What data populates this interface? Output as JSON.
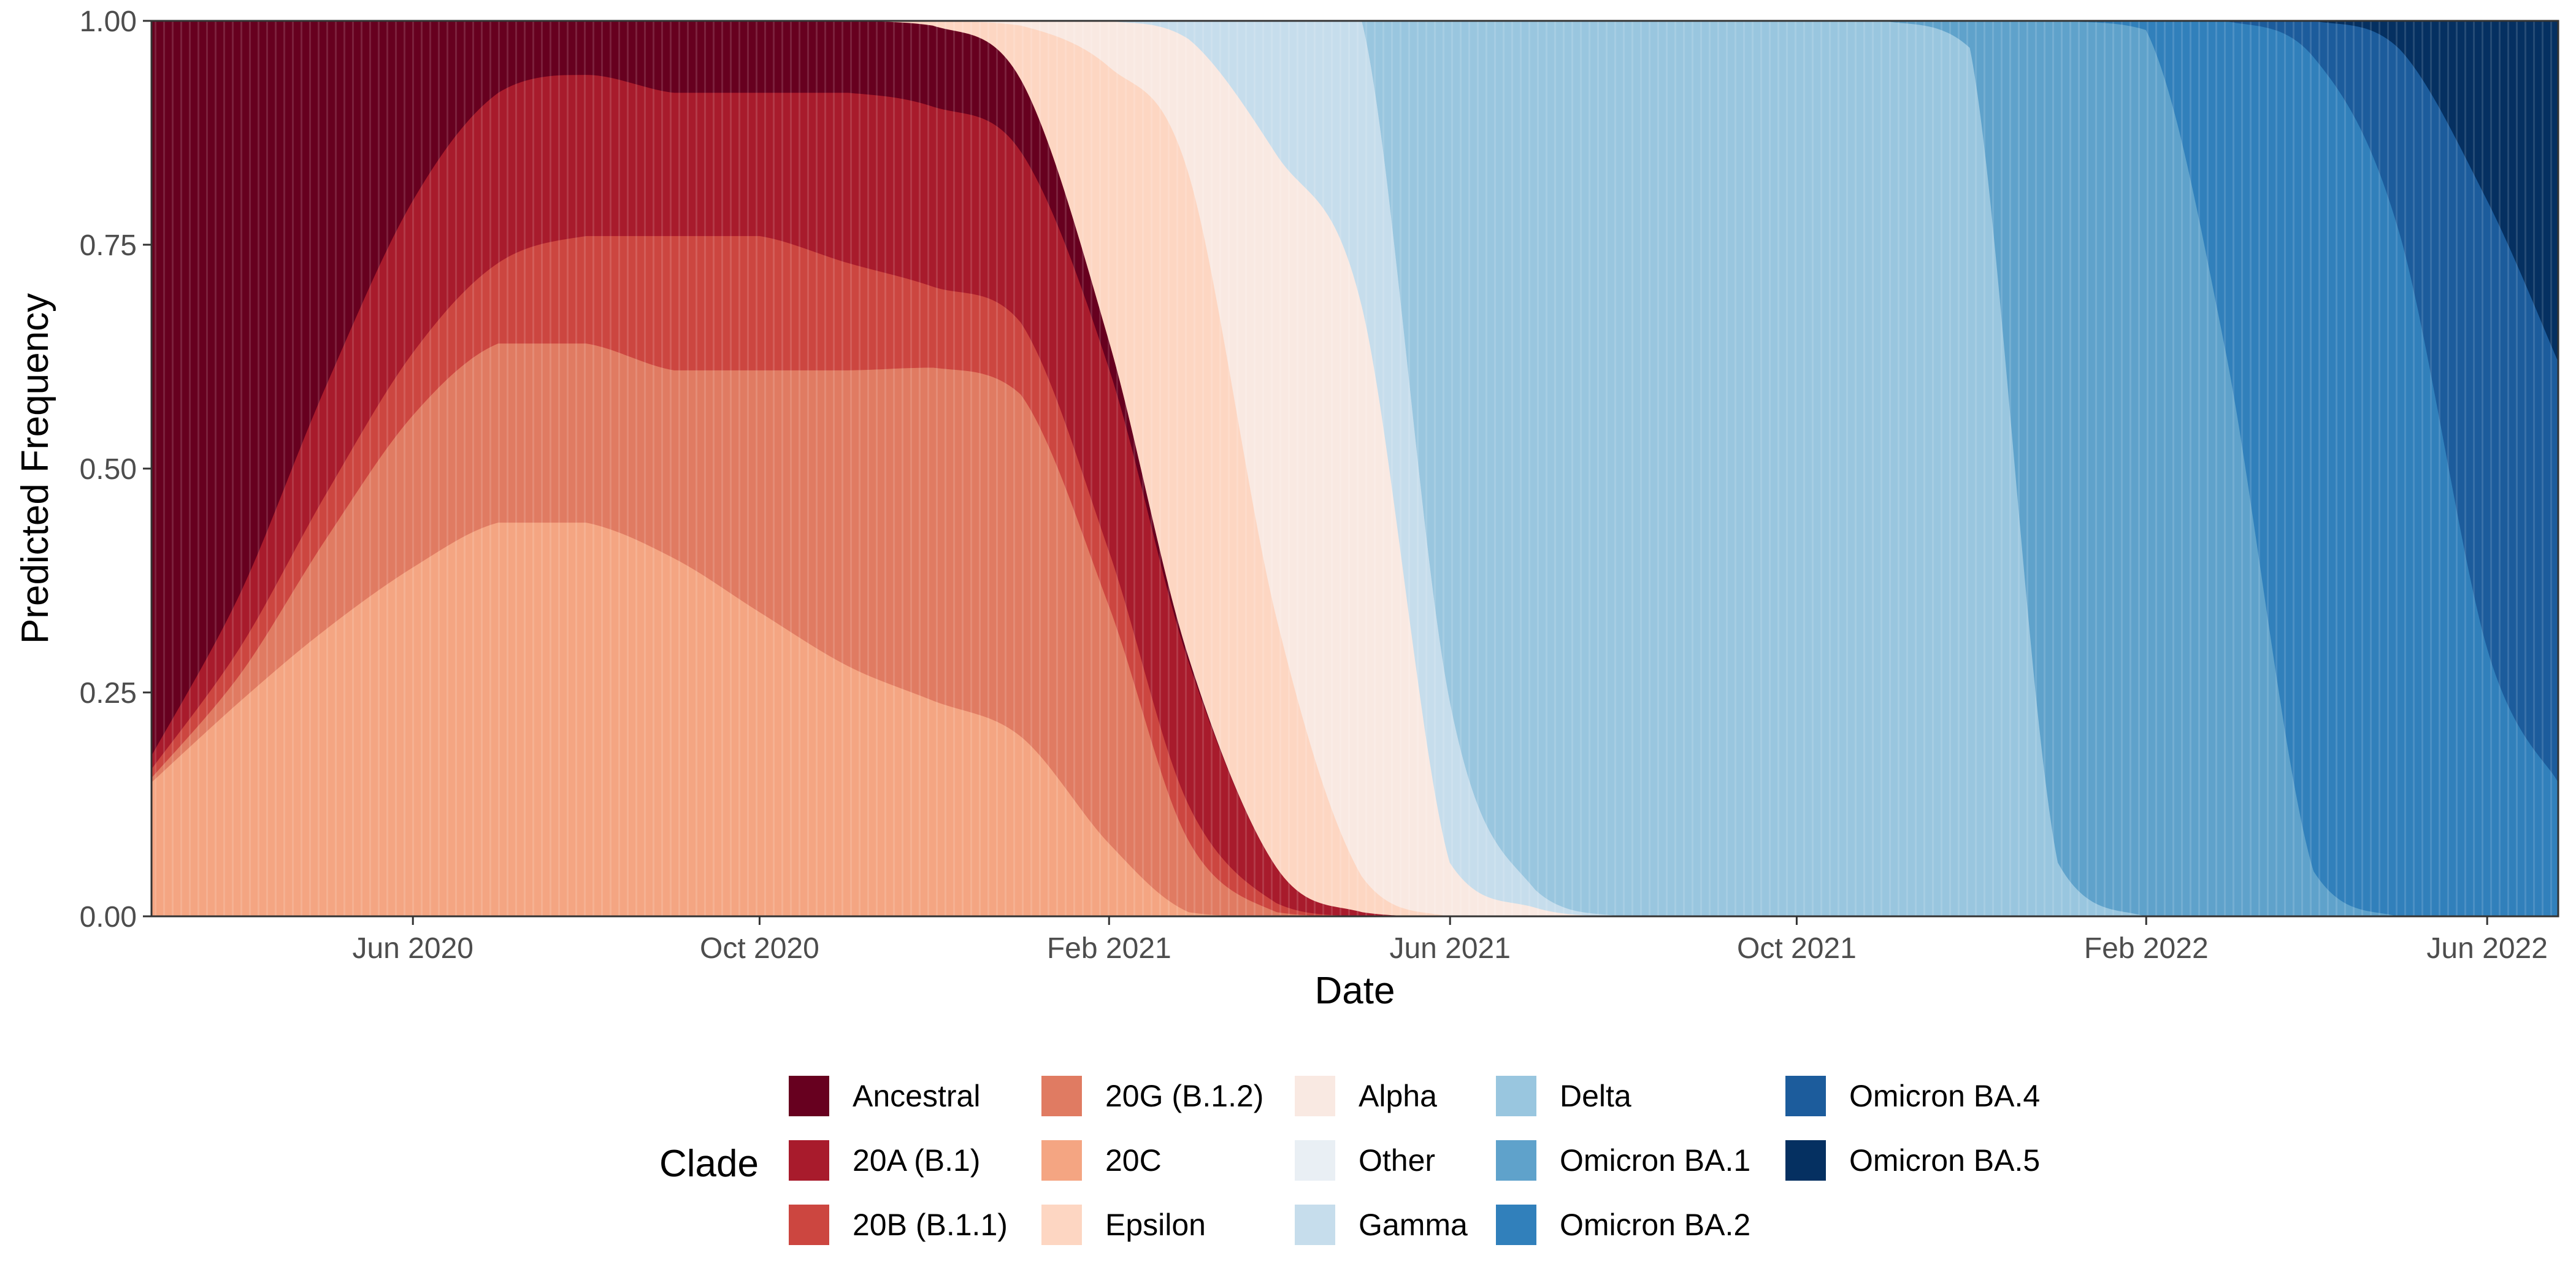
{
  "chart_data": {
    "type": "area",
    "stacked": true,
    "xlabel": "Date",
    "ylabel": "Predicted Frequency",
    "xlim": [
      "2020-03-01",
      "2022-06-26"
    ],
    "ylim": [
      0,
      1
    ],
    "x_ticks": [
      {
        "date": "2020-06-01",
        "label": "Jun 2020"
      },
      {
        "date": "2020-10-01",
        "label": "Oct 2020"
      },
      {
        "date": "2021-02-01",
        "label": "Feb 2021"
      },
      {
        "date": "2021-06-01",
        "label": "Jun 2021"
      },
      {
        "date": "2021-10-01",
        "label": "Oct 2021"
      },
      {
        "date": "2022-02-01",
        "label": "Feb 2022"
      },
      {
        "date": "2022-06-01",
        "label": "Jun 2022"
      }
    ],
    "y_ticks": [
      {
        "value": 0,
        "label": "0.00"
      },
      {
        "value": 0.25,
        "label": "0.25"
      },
      {
        "value": 0.5,
        "label": "0.50"
      },
      {
        "value": 0.75,
        "label": "0.75"
      },
      {
        "value": 1,
        "label": "1.00"
      }
    ],
    "legend_title": "Clade",
    "legend_position": "bottom",
    "x": [
      "2020-03-01",
      "2020-04-01",
      "2020-05-01",
      "2020-06-01",
      "2020-07-01",
      "2020-08-01",
      "2020-09-01",
      "2020-10-01",
      "2020-11-01",
      "2020-12-01",
      "2021-01-01",
      "2021-02-01",
      "2021-03-01",
      "2021-04-01",
      "2021-05-01",
      "2021-06-01",
      "2021-07-01",
      "2021-08-01",
      "2021-09-01",
      "2021-10-01",
      "2021-11-01",
      "2021-12-01",
      "2022-01-01",
      "2022-02-01",
      "2022-03-01",
      "2022-04-01",
      "2022-05-01",
      "2022-06-01",
      "2022-06-26"
    ],
    "series": [
      {
        "name": "20C",
        "color": "#f4a582",
        "values": [
          0.15,
          0.24,
          0.32,
          0.39,
          0.44,
          0.44,
          0.4,
          0.34,
          0.28,
          0.24,
          0.2,
          0.08,
          0.005,
          0,
          0,
          0,
          0,
          0,
          0,
          0,
          0,
          0,
          0,
          0,
          0,
          0,
          0,
          0,
          0
        ]
      },
      {
        "name": "20G (B.1.2)",
        "color": "#e07b62",
        "values": [
          0.005,
          0.03,
          0.1,
          0.17,
          0.2,
          0.2,
          0.21,
          0.27,
          0.33,
          0.37,
          0.38,
          0.26,
          0.08,
          0.005,
          0,
          0,
          0,
          0,
          0,
          0,
          0,
          0,
          0,
          0,
          0,
          0,
          0,
          0,
          0
        ]
      },
      {
        "name": "20B (B.1.1)",
        "color": "#cc4640",
        "values": [
          0.01,
          0.03,
          0.05,
          0.07,
          0.09,
          0.12,
          0.15,
          0.15,
          0.12,
          0.09,
          0.08,
          0.06,
          0.04,
          0.01,
          0,
          0,
          0,
          0,
          0,
          0,
          0,
          0,
          0,
          0,
          0,
          0,
          0,
          0,
          0
        ]
      },
      {
        "name": "20A (B.1)",
        "color": "#a81b2c",
        "values": [
          0.015,
          0.06,
          0.12,
          0.17,
          0.19,
          0.18,
          0.16,
          0.16,
          0.19,
          0.2,
          0.19,
          0.2,
          0.16,
          0.04,
          0.005,
          0,
          0,
          0,
          0,
          0,
          0,
          0,
          0,
          0,
          0,
          0,
          0,
          0,
          0
        ]
      },
      {
        "name": "Ancestral",
        "color": "#67001f",
        "values": [
          0.82,
          0.64,
          0.41,
          0.2,
          0.08,
          0.06,
          0.08,
          0.08,
          0.08,
          0.09,
          0.08,
          0.03,
          0.005,
          0,
          0,
          0,
          0,
          0,
          0,
          0,
          0,
          0,
          0,
          0,
          0,
          0,
          0,
          0,
          0
        ]
      },
      {
        "name": "Epsilon",
        "color": "#fdd6c2",
        "values": [
          0,
          0,
          0,
          0,
          0,
          0,
          0,
          0,
          0,
          0.005,
          0.06,
          0.3,
          0.54,
          0.28,
          0.04,
          0,
          0,
          0,
          0,
          0,
          0,
          0,
          0,
          0,
          0,
          0,
          0,
          0,
          0
        ]
      },
      {
        "name": "Alpha",
        "color": "#f9e9e2",
        "values": [
          0,
          0,
          0,
          0,
          0,
          0,
          0,
          0,
          0,
          0,
          0.005,
          0.05,
          0.15,
          0.52,
          0.64,
          0.06,
          0.01,
          0,
          0,
          0,
          0,
          0,
          0,
          0,
          0,
          0,
          0,
          0,
          0
        ]
      },
      {
        "name": "Gamma",
        "color": "#c6ddec",
        "values": [
          0,
          0,
          0,
          0,
          0,
          0,
          0,
          0,
          0,
          0,
          0,
          0,
          0.02,
          0.15,
          0.32,
          0.18,
          0.02,
          0,
          0,
          0,
          0,
          0,
          0,
          0,
          0,
          0,
          0,
          0,
          0
        ]
      },
      {
        "name": "Other",
        "color": "#e9eff4",
        "values": [
          0,
          0,
          0,
          0,
          0,
          0,
          0,
          0,
          0,
          0,
          0,
          0,
          0,
          0,
          0,
          0,
          0,
          0,
          0,
          0,
          0,
          0,
          0,
          0,
          0,
          0,
          0,
          0,
          0
        ]
      },
      {
        "name": "Delta",
        "color": "#99c6df",
        "values": [
          0,
          0,
          0,
          0,
          0,
          0,
          0,
          0,
          0,
          0,
          0,
          0,
          0,
          0,
          0,
          0.76,
          0.97,
          1,
          1,
          1,
          1,
          0.97,
          0.06,
          0,
          0,
          0,
          0,
          0,
          0
        ]
      },
      {
        "name": "Omicron BA.1",
        "color": "#5fa2cb",
        "values": [
          0,
          0,
          0,
          0,
          0,
          0,
          0,
          0,
          0,
          0,
          0,
          0,
          0,
          0,
          0,
          0,
          0,
          0,
          0,
          0,
          0,
          0.03,
          0.94,
          0.99,
          0.6,
          0.05,
          0,
          0,
          0
        ]
      },
      {
        "name": "Omicron BA.2",
        "color": "#3180bb",
        "values": [
          0,
          0,
          0,
          0,
          0,
          0,
          0,
          0,
          0,
          0,
          0,
          0,
          0,
          0,
          0,
          0,
          0,
          0,
          0,
          0,
          0,
          0,
          0,
          0.01,
          0.35,
          0.9,
          0.75,
          0.3,
          0.15
        ]
      },
      {
        "name": "Omicron BA.4",
        "color": "#1c5c9c",
        "values": [
          0,
          0,
          0,
          0,
          0,
          0,
          0,
          0,
          0,
          0,
          0,
          0,
          0,
          0,
          0,
          0,
          0,
          0,
          0,
          0,
          0,
          0,
          0,
          0,
          0,
          0.04,
          0.2,
          0.5,
          0.47
        ]
      },
      {
        "name": "Omicron BA.5",
        "color": "#053061",
        "values": [
          0,
          0,
          0,
          0,
          0,
          0,
          0,
          0,
          0,
          0,
          0,
          0,
          0,
          0,
          0,
          0,
          0,
          0,
          0,
          0,
          0,
          0,
          0,
          0,
          0,
          0,
          0.03,
          0.2,
          0.38
        ]
      }
    ],
    "legend_columns": [
      [
        "Ancestral",
        "20A (B.1)",
        "20B (B.1.1)"
      ],
      [
        "20G (B.1.2)",
        "20C",
        "Epsilon"
      ],
      [
        "Alpha",
        "Other",
        "Gamma"
      ],
      [
        "Delta",
        "Omicron BA.1",
        "Omicron BA.2"
      ],
      [
        "Omicron BA.4",
        "Omicron BA.5"
      ]
    ]
  }
}
